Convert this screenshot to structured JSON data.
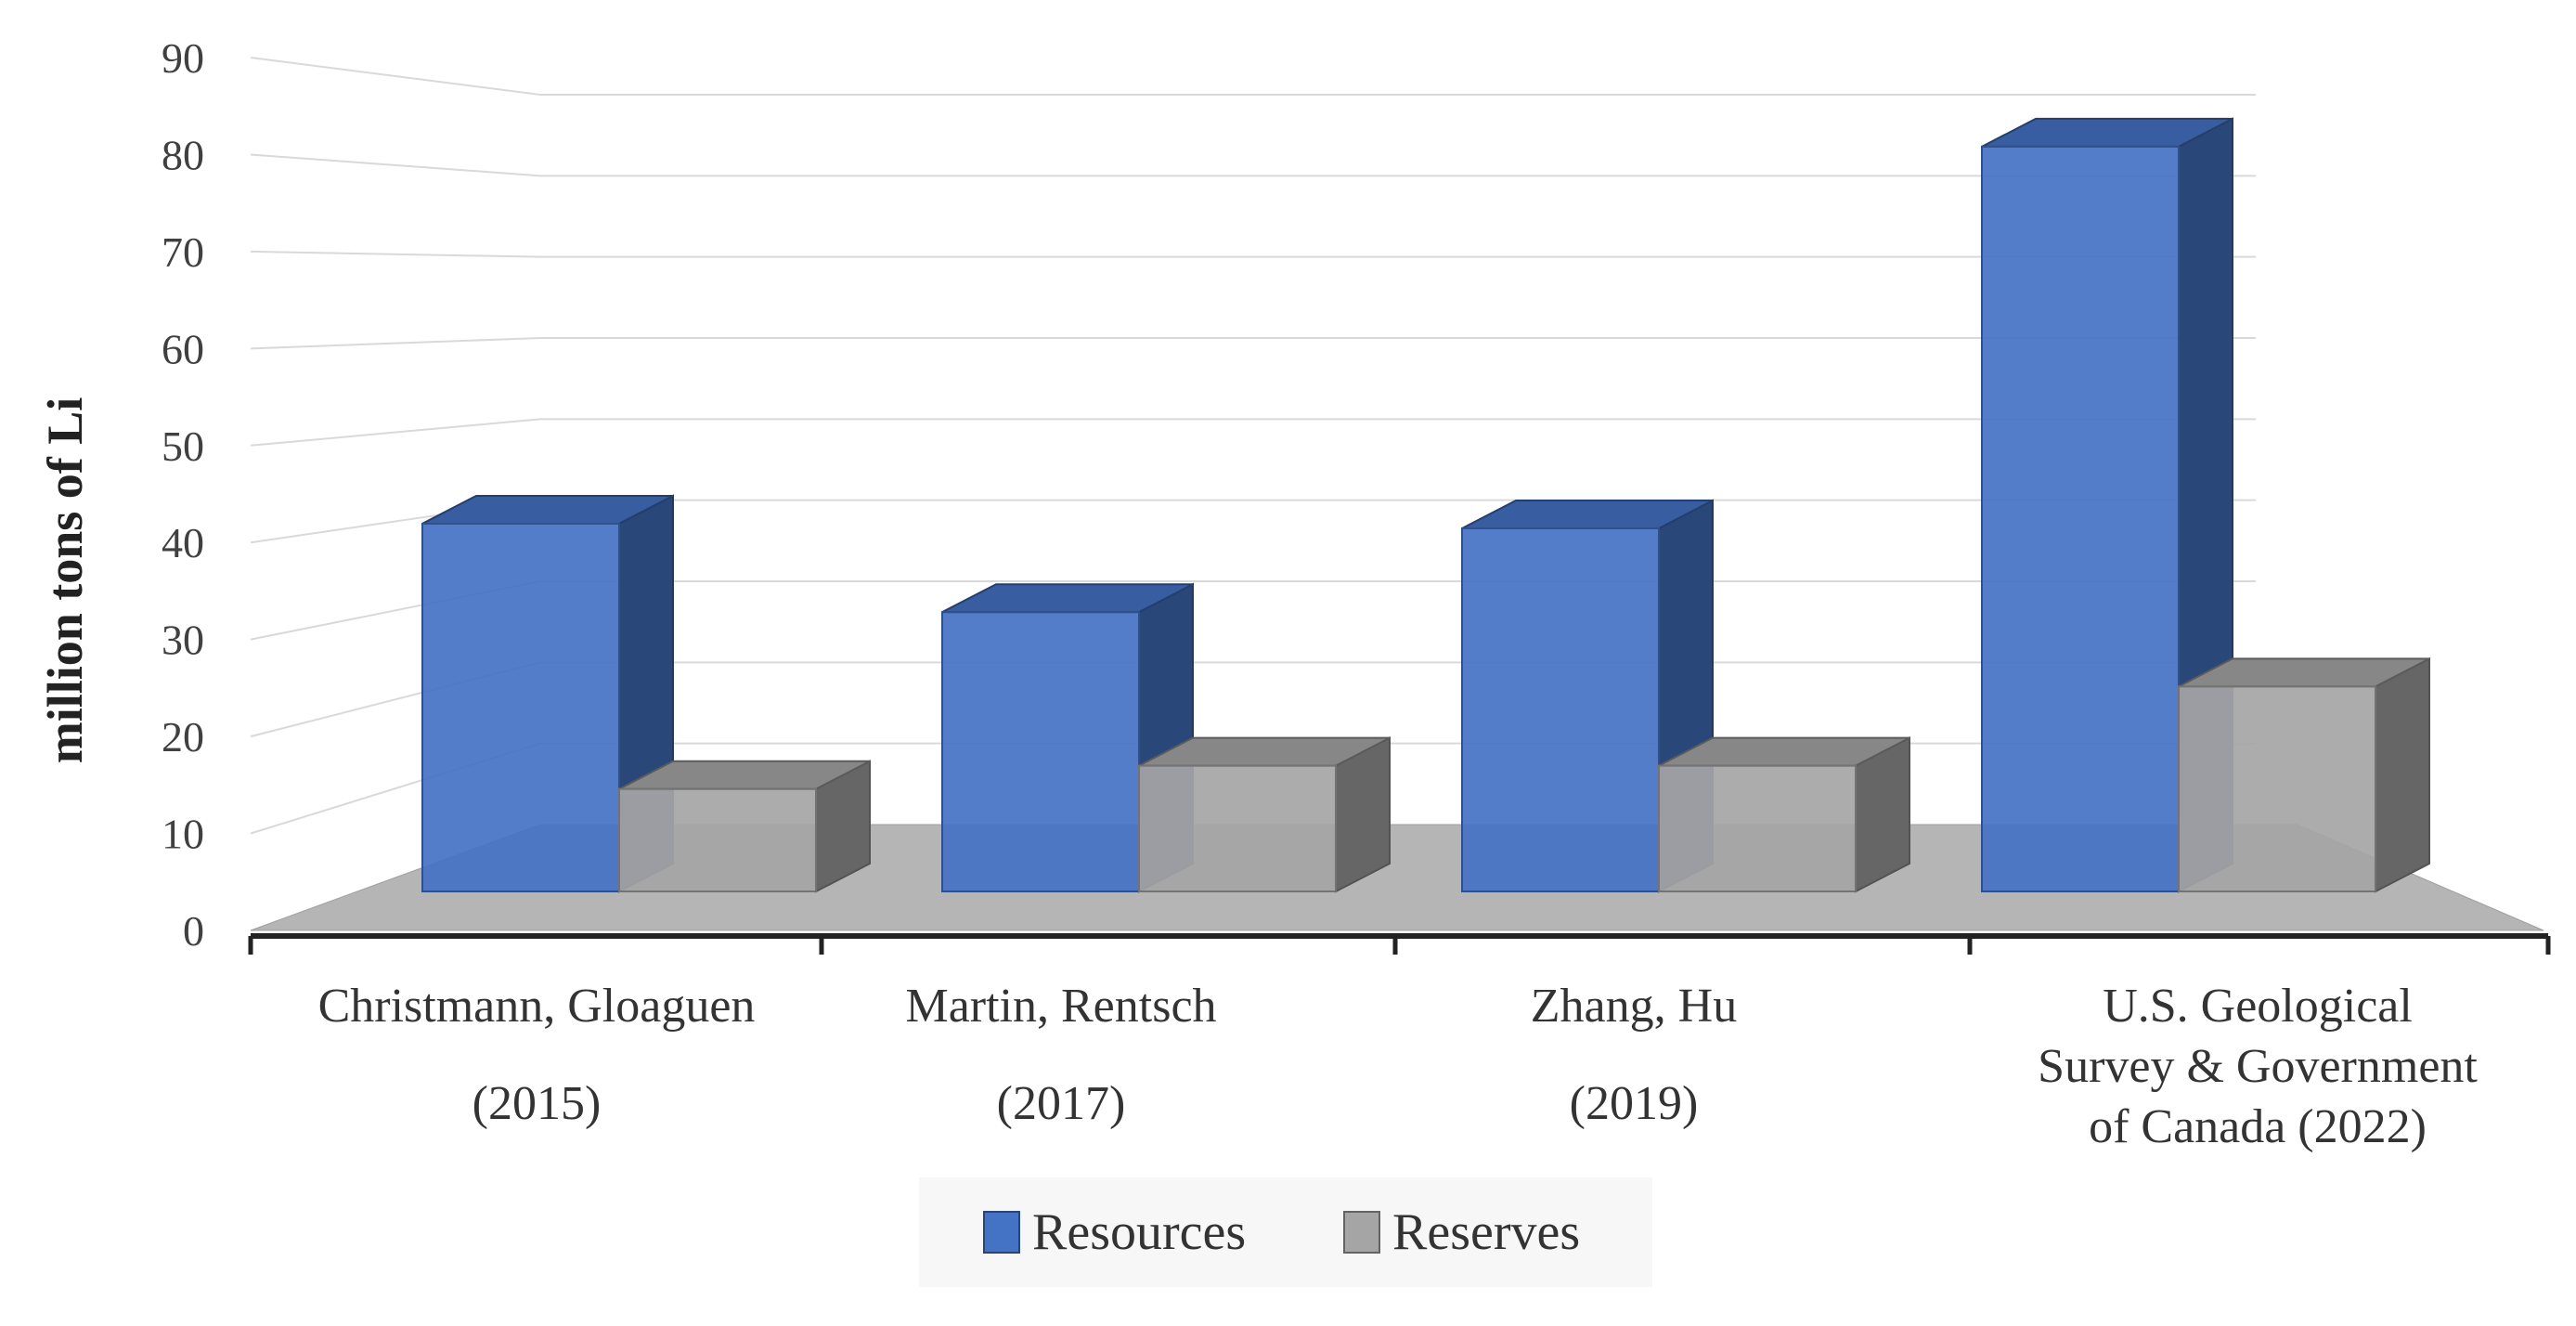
{
  "chart_data": {
    "type": "bar",
    "categories": [
      [
        "Christmann, Gloaguen",
        "(2015)"
      ],
      [
        "Martin, Rentsch",
        "(2017)"
      ],
      [
        "Zhang, Hu",
        "(2019)"
      ],
      [
        "U.S. Geological",
        "Survey & Government",
        "of Canada  (2022)"
      ]
    ],
    "series": [
      {
        "name": "Resources",
        "values": [
          39.5,
          30,
          39,
          80
        ],
        "color": "#4472C4"
      },
      {
        "name": "Reserves",
        "values": [
          11,
          13.5,
          13.5,
          22
        ],
        "color": "#A5A5A5"
      }
    ],
    "ylabel": "million tons of Li",
    "ylim": [
      0,
      90
    ],
    "yticks": [
      0,
      10,
      20,
      30,
      40,
      50,
      60,
      70,
      80,
      90
    ],
    "grid": true,
    "projection": "3d",
    "legend_position": "bottom"
  }
}
